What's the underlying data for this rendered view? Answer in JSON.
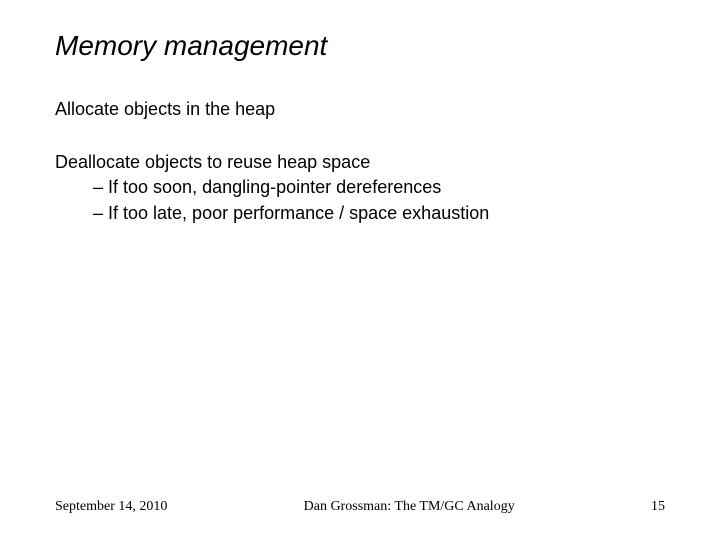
{
  "slide": {
    "title": "Memory management",
    "paragraph1": "Allocate objects in the heap",
    "paragraph2_line1": "Deallocate objects to reuse heap space",
    "paragraph2_bullet1": "– If too soon, dangling-pointer dereferences",
    "paragraph2_bullet2": "– If too late, poor performance / space exhaustion"
  },
  "footer": {
    "date": "September 14, 2010",
    "center": "Dan Grossman: The TM/GC Analogy",
    "page": "15"
  },
  "style": {
    "background_color": "#ffffff",
    "text_color": "#000000",
    "title_fontsize": 28,
    "body_fontsize": 18,
    "footer_fontsize": 14
  }
}
